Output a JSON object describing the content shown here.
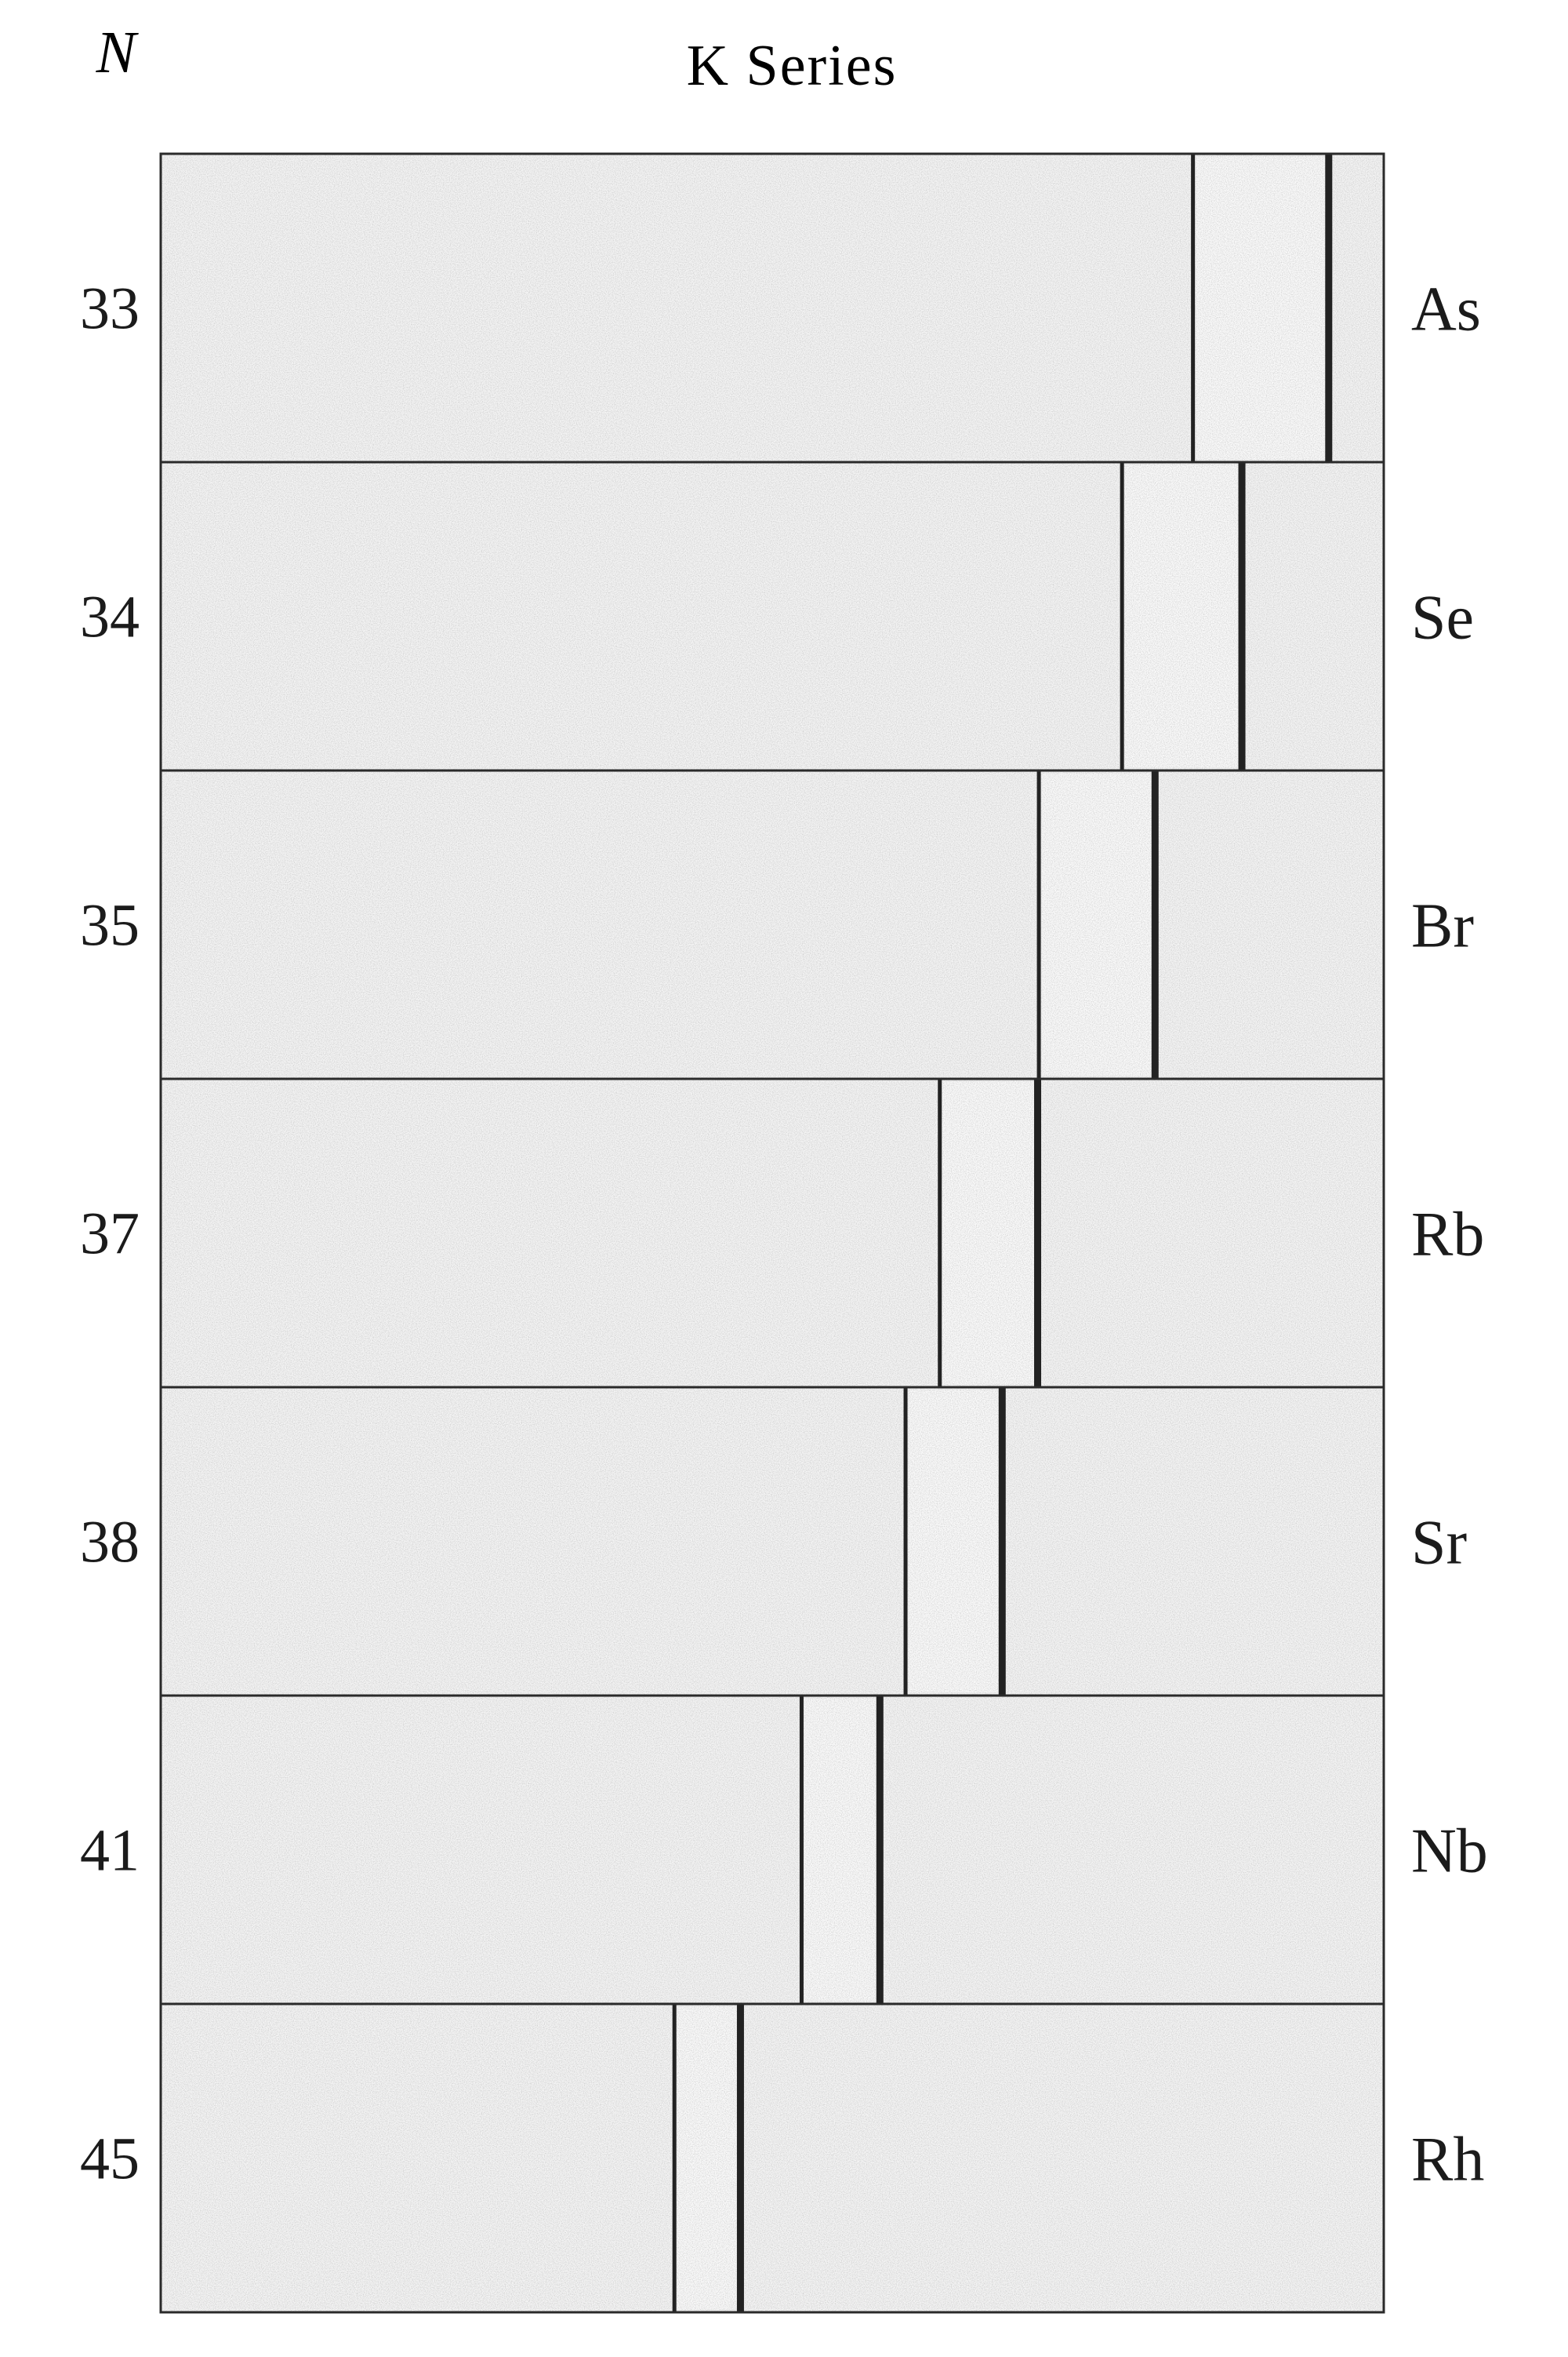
{
  "figure": {
    "column_header": "N",
    "title": "K Series"
  },
  "strips": [
    {
      "atomic_number": "33",
      "element": "As",
      "alpha_line": 0.844,
      "beta_line": 0.955
    },
    {
      "atomic_number": "34",
      "element": "Se",
      "alpha_line": 0.786,
      "beta_line": 0.884
    },
    {
      "atomic_number": "35",
      "element": "Br",
      "alpha_line": 0.718,
      "beta_line": 0.813
    },
    {
      "atomic_number": "37",
      "element": "Rb",
      "alpha_line": 0.637,
      "beta_line": 0.717
    },
    {
      "atomic_number": "38",
      "element": "Sr",
      "alpha_line": 0.609,
      "beta_line": 0.688
    },
    {
      "atomic_number": "41",
      "element": "Nb",
      "alpha_line": 0.524,
      "beta_line": 0.588
    },
    {
      "atomic_number": "45",
      "element": "Rh",
      "alpha_line": 0.42,
      "beta_line": 0.474
    }
  ],
  "colors": {
    "paper": "#f4f4f4",
    "ink": "#1b1b1b",
    "line": "#222222"
  }
}
